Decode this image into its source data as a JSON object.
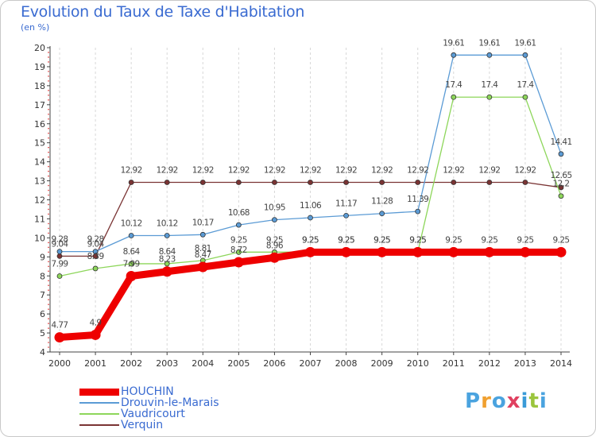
{
  "chart_data": {
    "type": "line",
    "title": "Evolution du Taux de Taxe d'Habitation",
    "subtitle": "(en %)",
    "ylim": [
      4,
      20
    ],
    "yticks": [
      4,
      5,
      6,
      7,
      8,
      9,
      10,
      11,
      12,
      13,
      14,
      15,
      16,
      17,
      18,
      19,
      20
    ],
    "categories": [
      "2000",
      "2001",
      "2002",
      "2003",
      "2004",
      "2005",
      "2006",
      "2007",
      "2008",
      "2009",
      "2010",
      "2011",
      "2012",
      "2013",
      "2014"
    ],
    "grid": "vertical dashed",
    "legend": "bottom-left",
    "series": [
      {
        "name": "HOUCHIN",
        "color": "#ee0000",
        "values": [
          4.77,
          4.9,
          7.99,
          8.23,
          8.47,
          8.72,
          8.96,
          9.25,
          9.25,
          9.25,
          9.25,
          9.25,
          9.25,
          9.25,
          9.25
        ]
      },
      {
        "name": "Drouvin-le-Marais",
        "color": "#5b9bd5",
        "values": [
          9.28,
          9.28,
          10.12,
          10.12,
          10.17,
          10.68,
          10.95,
          11.06,
          11.17,
          11.28,
          11.39,
          19.61,
          19.61,
          19.61,
          14.41
        ]
      },
      {
        "name": "Vaudricourt",
        "color": "#8dd65a",
        "values": [
          7.99,
          8.39,
          8.64,
          8.64,
          8.81,
          9.25,
          9.25,
          9.25,
          9.25,
          9.25,
          9.25,
          17.4,
          17.4,
          17.4,
          12.2
        ]
      },
      {
        "name": "Verquin",
        "color": "#7a3434",
        "values": [
          9.04,
          9.04,
          12.92,
          12.92,
          12.92,
          12.92,
          12.92,
          12.92,
          12.92,
          12.92,
          12.92,
          12.92,
          12.92,
          12.92,
          12.65
        ]
      }
    ]
  },
  "logo": {
    "text": "Proxiti",
    "colors": [
      "#4aa3df",
      "#f0a030",
      "#4aa3df",
      "#e04060",
      "#3a9bd8",
      "#9bc53d",
      "#4aa3df"
    ]
  }
}
